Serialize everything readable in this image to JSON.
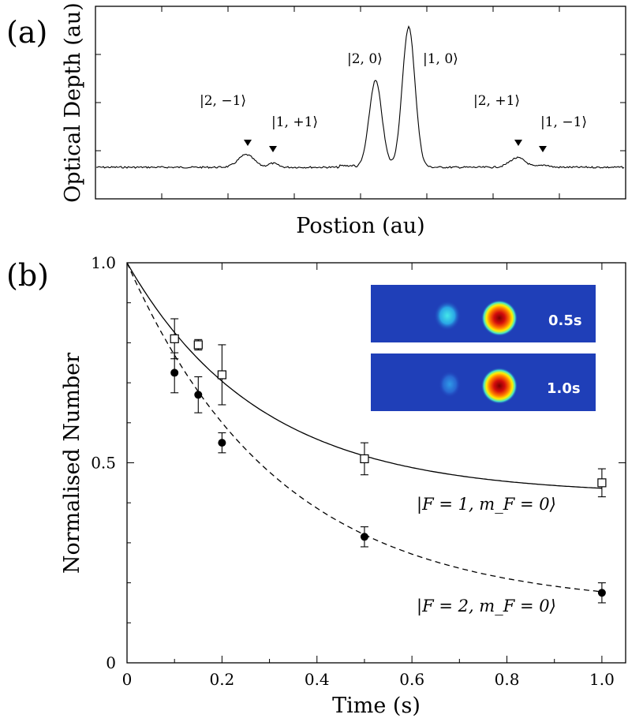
{
  "chart_data": [
    {
      "type": "line",
      "panel_label": "(a)",
      "xlabel": "Postion (au)",
      "ylabel": "Optical Depth (au)",
      "peaks": [
        {
          "label": "|2, −1⟩",
          "marker": true
        },
        {
          "label": "|1, +1⟩",
          "marker": true
        },
        {
          "label": "|2, 0⟩",
          "marker": false
        },
        {
          "label": "|1, 0⟩",
          "marker": false
        },
        {
          "label": "|2, +1⟩",
          "marker": true
        },
        {
          "label": "|1, −1⟩",
          "marker": true
        }
      ],
      "grid": false
    },
    {
      "type": "scatter",
      "panel_label": "(b)",
      "xlabel": "Time (s)",
      "ylabel": "Normalised Number",
      "xlim": [
        0,
        1.05
      ],
      "ylim": [
        0,
        1.0
      ],
      "xticks": [
        "0",
        "0.2",
        "0.4",
        "0.6",
        "0.8",
        "1.0"
      ],
      "yticks": [
        "0",
        "0.5",
        "1.0"
      ],
      "grid": false,
      "series": [
        {
          "name": "|F = 1, m_F = 0⟩",
          "marker": "open-square",
          "x": [
            0.1,
            0.15,
            0.2,
            0.5,
            1.0
          ],
          "y": [
            0.81,
            0.795,
            0.72,
            0.51,
            0.45
          ],
          "err": [
            0.05,
            0.013,
            0.075,
            0.04,
            0.035
          ],
          "fit": {
            "style": "solid",
            "model": "exponential",
            "plateau": 0.42,
            "tau": 0.28
          }
        },
        {
          "name": "|F = 2, m_F = 0⟩",
          "marker": "filled-circle",
          "x": [
            0.1,
            0.15,
            0.2,
            0.5,
            1.0
          ],
          "y": [
            0.725,
            0.67,
            0.55,
            0.315,
            0.175
          ],
          "err": [
            0.05,
            0.045,
            0.025,
            0.025,
            0.025
          ],
          "fit": {
            "style": "dashed",
            "model": "exponential",
            "plateau": 0.14,
            "tau": 0.32
          }
        }
      ],
      "inset_images": [
        {
          "label": "0.5s"
        },
        {
          "label": "1.0s"
        }
      ],
      "colors": {
        "inset_background": "#1f3fb8",
        "hot": "#b80000",
        "cool": "#31d6e6"
      }
    }
  ]
}
